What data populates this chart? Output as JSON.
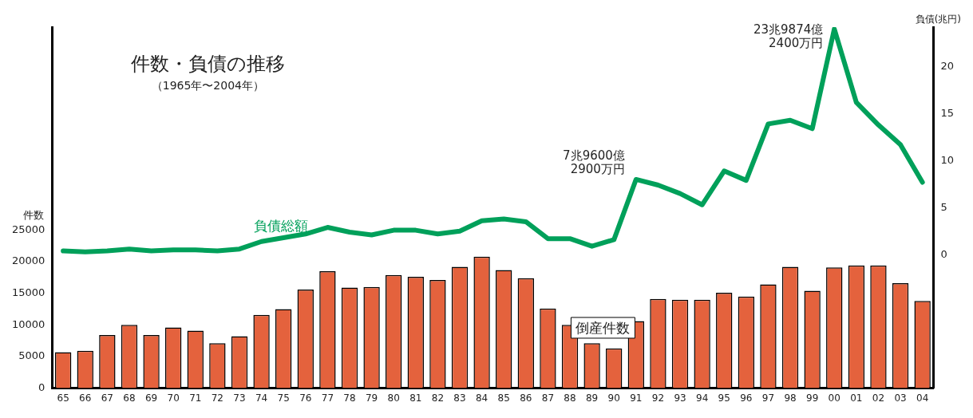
{
  "chart_data": {
    "type": "bar",
    "title": "件数・負債の推移",
    "subtitle": "（1965年〜2004年）",
    "ylabel": "件数",
    "y2label": "負債(兆円)",
    "categories": [
      "65",
      "66",
      "67",
      "68",
      "69",
      "70",
      "71",
      "72",
      "73",
      "74",
      "75",
      "76",
      "77",
      "78",
      "79",
      "80",
      "81",
      "82",
      "83",
      "84",
      "85",
      "86",
      "87",
      "88",
      "89",
      "90",
      "91",
      "92",
      "93",
      "94",
      "95",
      "96",
      "97",
      "98",
      "99",
      "00",
      "01",
      "02",
      "03",
      "04"
    ],
    "series": [
      {
        "name": "倒産件数",
        "color": "#e4623d",
        "values": [
          5700,
          5900,
          8400,
          10000,
          8400,
          9600,
          9100,
          7100,
          8200,
          11600,
          12500,
          15600,
          18500,
          15900,
          16000,
          17900,
          17600,
          17100,
          19200,
          20800,
          18700,
          17400,
          12600,
          10000,
          7100,
          6300,
          10600,
          14100,
          14000,
          14000,
          15100,
          14500,
          16400,
          19200,
          15400,
          19100,
          19400,
          19400,
          16600,
          13800
        ]
      },
      {
        "name": "負債総額",
        "type": "line",
        "axis": "y2",
        "color": "#00a05a",
        "values": [
          0.4,
          0.3,
          0.4,
          0.6,
          0.4,
          0.5,
          0.5,
          0.4,
          0.6,
          1.4,
          1.8,
          2.2,
          2.9,
          2.4,
          2.1,
          2.6,
          2.6,
          2.2,
          2.5,
          3.6,
          3.8,
          3.5,
          1.7,
          1.7,
          0.9,
          1.6,
          8.0,
          7.4,
          6.5,
          5.3,
          8.9,
          7.9,
          13.9,
          14.3,
          13.4,
          24.0,
          16.2,
          13.8,
          11.7,
          7.7
        ]
      }
    ],
    "ylim": [
      0,
      57100
    ],
    "yticks": [
      0,
      5000,
      10000,
      15000,
      20000,
      25000
    ],
    "y2lim": [
      -14.2,
      24.2
    ],
    "y2ticks": [
      0,
      5,
      10,
      15,
      20
    ],
    "annotations": [
      "7兆9600億\n2900万円",
      "23兆9874億\n2400万円"
    ],
    "grid": false,
    "legend": false,
    "marker": "none",
    "line_style": "solid"
  }
}
